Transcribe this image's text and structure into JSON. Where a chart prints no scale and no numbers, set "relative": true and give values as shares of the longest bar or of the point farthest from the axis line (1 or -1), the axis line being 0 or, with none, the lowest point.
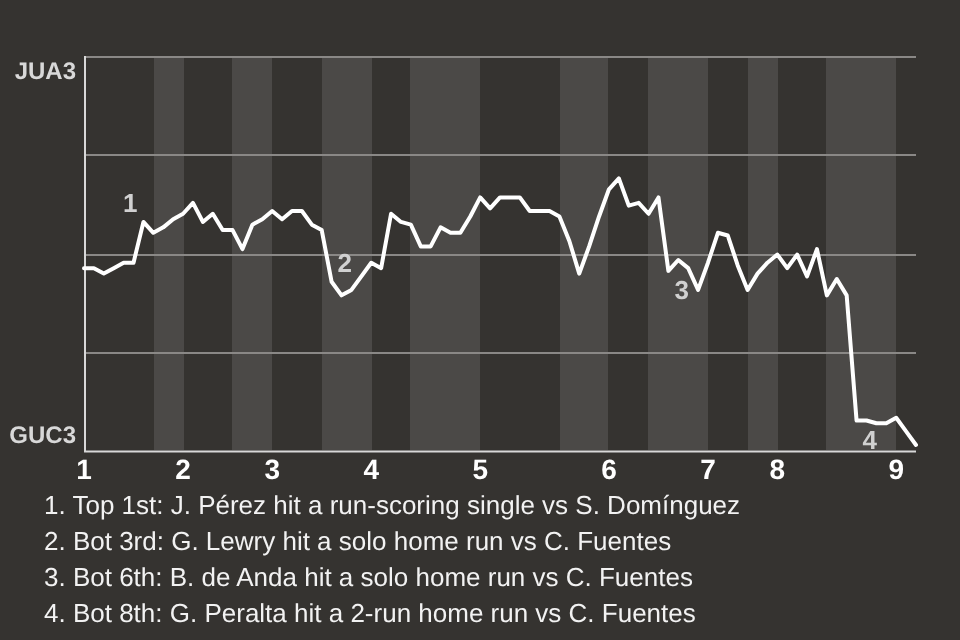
{
  "chart_data": {
    "type": "line",
    "relative": true,
    "categories": [
      "1",
      null,
      null,
      null,
      null,
      null,
      null,
      null,
      null,
      null,
      "2",
      null,
      null,
      null,
      null,
      null,
      null,
      null,
      null,
      "3",
      null,
      null,
      null,
      null,
      null,
      null,
      null,
      null,
      null,
      "4",
      null,
      null,
      null,
      null,
      null,
      null,
      null,
      null,
      null,
      null,
      "5",
      null,
      null,
      null,
      null,
      null,
      null,
      null,
      null,
      null,
      null,
      null,
      null,
      "6",
      null,
      null,
      null,
      null,
      null,
      null,
      null,
      null,
      null,
      "7",
      null,
      null,
      null,
      null,
      null,
      null,
      "8",
      null,
      null,
      null,
      null,
      null,
      null,
      null,
      null,
      null,
      null,
      null,
      "9",
      null,
      null
    ],
    "series": [
      {
        "color": "#ffffff",
        "values": [
          0.67,
          0.67,
          0.65,
          0.67,
          0.69,
          0.69,
          0.84,
          0.8,
          0.82,
          0.85,
          0.87,
          0.91,
          0.84,
          0.87,
          0.81,
          0.81,
          0.74,
          0.83,
          0.85,
          0.88,
          0.85,
          0.88,
          0.88,
          0.83,
          0.81,
          0.62,
          0.57,
          0.59,
          0.64,
          0.69,
          0.67,
          0.87,
          0.84,
          0.83,
          0.75,
          0.75,
          0.82,
          0.8,
          0.8,
          0.86,
          0.93,
          0.89,
          0.93,
          0.93,
          0.93,
          0.88,
          0.88,
          0.88,
          0.86,
          0.77,
          0.65,
          0.75,
          0.86,
          0.96,
          1,
          0.9,
          0.91,
          0.87,
          0.93,
          0.66,
          0.7,
          0.67,
          0.59,
          0.69,
          0.8,
          0.79,
          0.68,
          0.59,
          0.65,
          0.69,
          0.72,
          0.67,
          0.72,
          0.64,
          0.74,
          0.57,
          0.63,
          0.57,
          0.11,
          0.11,
          0.1,
          0.1,
          0.12,
          0.07,
          0.02
        ]
      }
    ],
    "ref_lines": [
      {
        "axis": "y",
        "value": 0.36,
        "color": "#8a8886"
      },
      {
        "axis": "y",
        "value": 0.72,
        "color": "#8a8886"
      },
      {
        "axis": "y",
        "value": 1.09,
        "color": "#8a8886"
      },
      {
        "axis": "y",
        "value": 1.45,
        "color": "#8a8886"
      }
    ],
    "legend": false,
    "marker": "none",
    "line_style": "solid",
    "annotations": [
      "JUA3",
      "GUC3",
      "1",
      "2",
      "3",
      "4",
      "1. Top 1st: J. Pérez hit a run-scoring single vs S. Domínguez",
      "2. Bot 3rd: G. Lewry hit a solo home run vs C. Fuentes",
      "3. Bot 6th: B. de Anda hit a solo home run vs C. Fuentes",
      "4. Bot 8th: G. Peralta hit a 2-run home run vs C. Fuentes"
    ]
  }
}
